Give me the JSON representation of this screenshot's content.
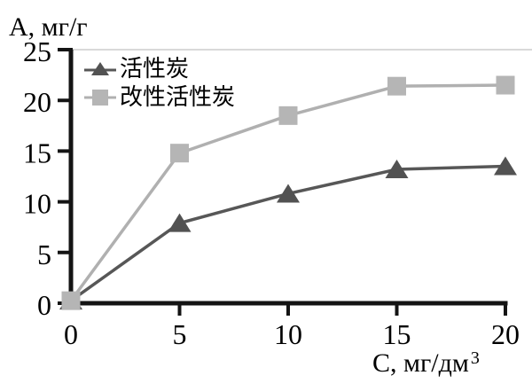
{
  "chart_data": {
    "type": "line",
    "title": "",
    "ylabel": "А, мг/г",
    "xlabel": "С, мг/дм³",
    "xlabel_base": "С, мг/дм",
    "xlabel_sup": "3",
    "xlim": [
      0,
      20
    ],
    "ylim": [
      0,
      25
    ],
    "x_ticks": [
      0,
      5,
      10,
      15,
      20
    ],
    "y_ticks": [
      0,
      5,
      10,
      15,
      20,
      25
    ],
    "grid": false,
    "legend_position": "top-left-inside",
    "x": [
      0,
      5,
      10,
      15,
      20
    ],
    "series": [
      {
        "name": "活性炭",
        "marker": "triangle",
        "color": "#575757",
        "marker_color": "#525252",
        "values": [
          0.25,
          7.9,
          10.8,
          13.2,
          13.5
        ]
      },
      {
        "name": "改性活性炭",
        "marker": "square",
        "color": "#b0b0b0",
        "marker_color": "#b5b5b5",
        "values": [
          0.25,
          14.8,
          18.5,
          21.4,
          21.5
        ]
      }
    ],
    "colors": {
      "axis": "#141414",
      "plot_border_top": "#d9d9d9",
      "text": "#000000"
    }
  }
}
